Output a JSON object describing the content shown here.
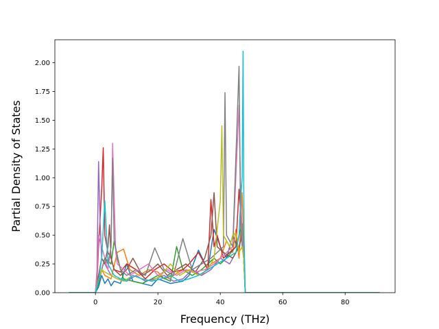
{
  "chart_data": {
    "type": "line",
    "title": "",
    "xlabel": "Frequency (THz)",
    "ylabel": "Partial Density of States",
    "xlim": [
      -13,
      96
    ],
    "ylim": [
      0,
      2.2
    ],
    "xticks": [
      0,
      20,
      40,
      60,
      80
    ],
    "xtick_labels": [
      "0",
      "20",
      "40",
      "60",
      "80"
    ],
    "yticks": [
      0,
      0.25,
      0.5,
      0.75,
      1.0,
      1.25,
      1.5,
      1.75,
      2.0
    ],
    "ytick_labels": [
      "0.00",
      "0.25",
      "0.50",
      "0.75",
      "1.00",
      "1.25",
      "1.50",
      "1.75",
      "2.00"
    ],
    "grid": false,
    "legend": "none",
    "colors": [
      "#1f77b4",
      "#ff7f0e",
      "#2ca02c",
      "#d62728",
      "#9467bd",
      "#8c564b",
      "#e377c2",
      "#7f7f7f",
      "#bcbd22",
      "#17becf"
    ],
    "series": [
      {
        "color": "#1f77b4",
        "x": [
          -8.5,
          0,
          1,
          2,
          3,
          4,
          5,
          6,
          8,
          10,
          12,
          15,
          18,
          20,
          24,
          28,
          30,
          33,
          36,
          38,
          40,
          42,
          44,
          46,
          47,
          47.5,
          48,
          50,
          91
        ],
        "y": [
          0,
          0,
          0.05,
          0.15,
          0.08,
          0.12,
          0.06,
          0.1,
          0.08,
          0.25,
          0.1,
          0.08,
          0.06,
          0.12,
          0.08,
          0.1,
          0.15,
          0.37,
          0.2,
          0.55,
          0.4,
          0.3,
          0.5,
          0.35,
          0.6,
          0.3,
          0,
          0,
          0
        ]
      },
      {
        "color": "#ff7f0e",
        "x": [
          -8.5,
          0,
          1,
          2,
          3,
          5,
          7,
          9,
          11,
          14,
          17,
          20,
          22,
          25,
          28,
          31,
          34,
          37,
          40,
          42,
          44,
          45,
          46,
          47,
          47.5,
          48,
          50,
          91
        ],
        "y": [
          0,
          0,
          0.1,
          0.2,
          0.15,
          0.12,
          0.35,
          0.38,
          0.2,
          0.15,
          0.2,
          0.18,
          0.12,
          0.15,
          0.2,
          0.18,
          0.15,
          0.25,
          0.3,
          0.45,
          0.35,
          0.55,
          0.3,
          0.87,
          0.4,
          0,
          0,
          0
        ]
      },
      {
        "color": "#2ca02c",
        "x": [
          -8.5,
          0,
          1,
          2,
          3,
          5,
          6,
          7,
          9,
          12,
          15,
          18,
          20,
          24,
          26,
          28,
          31,
          34,
          38,
          40,
          42,
          45,
          46,
          47,
          47.5,
          48,
          50,
          91
        ],
        "y": [
          0,
          0,
          0.08,
          0.2,
          0.3,
          0.25,
          0.45,
          0.3,
          0.12,
          0.1,
          0.08,
          0.12,
          0.15,
          0.1,
          0.4,
          0.2,
          0.15,
          0.2,
          0.3,
          0.25,
          0.3,
          0.4,
          0.5,
          0.6,
          0.3,
          0,
          0,
          0
        ]
      },
      {
        "color": "#d62728",
        "x": [
          -8.5,
          0,
          0.5,
          1,
          2,
          2.5,
          3,
          4,
          5,
          6,
          8,
          10,
          13,
          16,
          19,
          22,
          25,
          28,
          30,
          33,
          36,
          37,
          38,
          39,
          41,
          43,
          45,
          46,
          47,
          47.5,
          48,
          50,
          91
        ],
        "y": [
          0,
          0,
          0.1,
          0.4,
          0.9,
          1.26,
          0.5,
          0.35,
          0.3,
          0.2,
          0.18,
          0.25,
          0.2,
          0.12,
          0.2,
          0.25,
          0.18,
          0.2,
          0.25,
          0.35,
          0.2,
          0.81,
          0.4,
          0.5,
          0.3,
          0.35,
          0.4,
          0.9,
          0.5,
          0.3,
          0,
          0,
          0
        ]
      },
      {
        "color": "#9467bd",
        "x": [
          -8.5,
          0,
          0.5,
          1,
          1.5,
          2,
          3,
          4,
          5,
          7,
          10,
          13,
          16,
          19,
          22,
          25,
          28,
          31,
          34,
          37,
          40,
          43,
          46,
          47,
          47.5,
          48,
          50,
          91
        ],
        "y": [
          0,
          0,
          0.2,
          1.14,
          0.6,
          0.3,
          0.25,
          0.2,
          0.15,
          0.12,
          0.1,
          0.15,
          0.1,
          0.12,
          0.15,
          0.1,
          0.12,
          0.2,
          0.15,
          0.2,
          0.3,
          0.25,
          0.4,
          0.5,
          0.3,
          0,
          0,
          0
        ]
      },
      {
        "color": "#8c564b",
        "x": [
          -8.5,
          0,
          1,
          2,
          3,
          4,
          4.5,
          5,
          6,
          8,
          10,
          12,
          15,
          18,
          20,
          23,
          26,
          29,
          32,
          35,
          37,
          38,
          39,
          41,
          44,
          46,
          47,
          47.5,
          48,
          50,
          91
        ],
        "y": [
          0,
          0,
          0.15,
          0.3,
          0.25,
          0.4,
          0.59,
          0.3,
          0.2,
          0.15,
          0.2,
          0.3,
          0.15,
          0.2,
          0.25,
          0.15,
          0.2,
          0.25,
          0.18,
          0.3,
          0.5,
          0.87,
          0.4,
          0.35,
          0.3,
          0.4,
          0.5,
          0.3,
          0,
          0,
          0
        ]
      },
      {
        "color": "#e377c2",
        "x": [
          -8.5,
          0,
          0.5,
          1,
          2,
          3,
          4,
          5,
          5.5,
          6,
          6.5,
          7,
          9,
          11,
          14,
          17,
          20,
          23,
          26,
          29,
          32,
          35,
          38,
          40,
          42,
          44,
          46,
          46.5,
          47,
          47.5,
          48,
          50,
          91
        ],
        "y": [
          0,
          0,
          0.15,
          0.5,
          0.4,
          0.3,
          0.2,
          0.4,
          1.3,
          0.82,
          0.35,
          0.25,
          0.2,
          0.15,
          0.2,
          0.25,
          0.15,
          0.2,
          0.15,
          0.2,
          0.18,
          0.2,
          0.25,
          0.3,
          0.35,
          0.4,
          1.63,
          0.9,
          0.5,
          0.3,
          0,
          0,
          0
        ]
      },
      {
        "color": "#7f7f7f",
        "x": [
          -8.5,
          0,
          1,
          2,
          3,
          4,
          5,
          5.5,
          6,
          8,
          10,
          13,
          16,
          19,
          22,
          25,
          28,
          31,
          34,
          37,
          39,
          41,
          41.5,
          42,
          44,
          46,
          46.5,
          47,
          47.5,
          48,
          50,
          91
        ],
        "y": [
          0,
          0,
          0.1,
          0.2,
          0.3,
          0.25,
          0.4,
          1.17,
          0.45,
          0.2,
          0.15,
          0.2,
          0.15,
          0.39,
          0.2,
          0.15,
          0.47,
          0.2,
          0.25,
          0.3,
          0.35,
          0.4,
          1.74,
          0.5,
          0.4,
          1.97,
          0.6,
          0.4,
          0.3,
          0,
          0,
          0
        ]
      },
      {
        "color": "#bcbd22",
        "x": [
          -8.5,
          0,
          1,
          2,
          3,
          5,
          7,
          9,
          12,
          15,
          18,
          21,
          24,
          27,
          30,
          33,
          36,
          38,
          40,
          40.5,
          41,
          43,
          44,
          45,
          46,
          47,
          47.5,
          48,
          50,
          91
        ],
        "y": [
          0,
          0,
          0.12,
          0.2,
          0.18,
          0.15,
          0.12,
          0.1,
          0.15,
          0.12,
          0.1,
          0.15,
          0.25,
          0.15,
          0.2,
          0.15,
          0.2,
          0.3,
          0.8,
          1.45,
          0.5,
          0.4,
          0.5,
          0.52,
          0.35,
          0.4,
          0.3,
          0,
          0,
          0
        ]
      },
      {
        "color": "#17becf",
        "x": [
          -8.5,
          0,
          1,
          2,
          3,
          4,
          6,
          8,
          10,
          12,
          15,
          18,
          21,
          24,
          27,
          30,
          33,
          36,
          39,
          42,
          45,
          46,
          46.5,
          47,
          47.3,
          47.6,
          48,
          50,
          91
        ],
        "y": [
          0,
          0,
          0.1,
          0.3,
          0.8,
          0.25,
          0.15,
          0.12,
          0.1,
          0.15,
          0.12,
          0.1,
          0.12,
          0.15,
          0.1,
          0.12,
          0.15,
          0.2,
          0.25,
          0.3,
          0.35,
          0.5,
          0.8,
          1.0,
          2.1,
          0.5,
          0,
          0,
          0
        ]
      }
    ]
  }
}
